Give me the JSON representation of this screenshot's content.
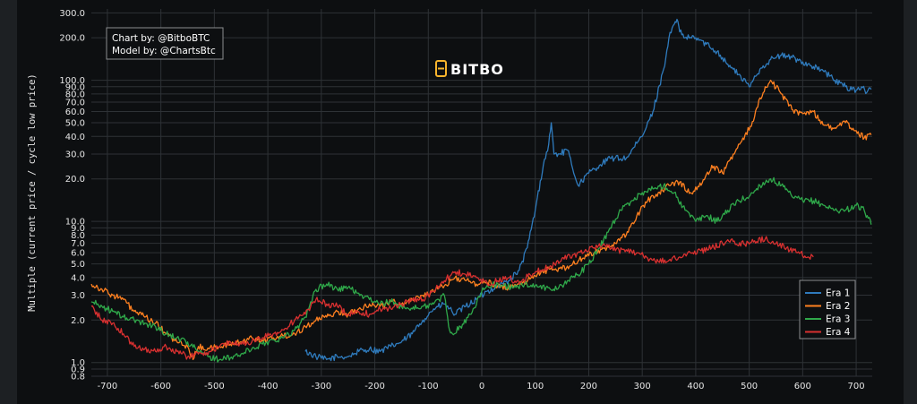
{
  "credits": {
    "line1": "Chart by: @BitboBTC",
    "line2": "Model by: @ChartsBtc"
  },
  "brand": {
    "name": "BITBO",
    "icon": "bitcoin-b-logo",
    "color": "#f7b42c"
  },
  "chart_data": {
    "type": "line",
    "title": "",
    "xlabel": "",
    "ylabel": "Multiple (current price / cycle low price)",
    "xlim": [
      -730,
      730
    ],
    "ylim": [
      0.8,
      320
    ],
    "yscale": "log",
    "grid": true,
    "legend_position": "bottom-right",
    "xticks": [
      -700,
      -600,
      -500,
      -400,
      -300,
      -200,
      -100,
      0,
      100,
      200,
      300,
      400,
      500,
      600,
      700
    ],
    "yticks": [
      0.8,
      0.9,
      1.0,
      2.0,
      3.0,
      4.0,
      5.0,
      6.0,
      7.0,
      8.0,
      9.0,
      10.0,
      20.0,
      30.0,
      40.0,
      50.0,
      60.0,
      70.0,
      80.0,
      90.0,
      100.0,
      200.0,
      300.0
    ],
    "ytick_labels": [
      "0.8",
      "0.9",
      "1.0",
      "2.0",
      "3.0",
      "4.0",
      "5.0",
      "6.0",
      "7.0",
      "8.0",
      "9.0",
      "10.0",
      "20.0",
      "30.0",
      "40.0",
      "50.0",
      "60.0",
      "70.0",
      "80.0",
      "90.0",
      "100.0",
      "200.0",
      "300.0"
    ],
    "series": [
      {
        "name": "Era 1",
        "color": "#2f7bbd",
        "x": [
          -330,
          -310,
          -290,
          -270,
          -250,
          -230,
          -210,
          -190,
          -170,
          -150,
          -130,
          -110,
          -90,
          -70,
          -50,
          -30,
          -10,
          10,
          30,
          50,
          70,
          85,
          100,
          115,
          125,
          130,
          135,
          145,
          160,
          180,
          200,
          220,
          240,
          270,
          300,
          320,
          340,
          350,
          360,
          365,
          370,
          380,
          400,
          420,
          440,
          460,
          480,
          500,
          520,
          540,
          560,
          580,
          600,
          620,
          640,
          660,
          680,
          700,
          710,
          720,
          728
        ],
        "values": [
          1.2,
          1.1,
          1.05,
          1.1,
          1.1,
          1.2,
          1.25,
          1.2,
          1.3,
          1.4,
          1.6,
          2.0,
          2.4,
          2.6,
          2.2,
          2.5,
          2.8,
          3.2,
          3.5,
          3.8,
          4.5,
          6.5,
          12,
          25,
          35,
          50,
          30,
          30,
          32,
          18,
          22,
          25,
          28,
          28,
          40,
          60,
          120,
          200,
          250,
          270,
          220,
          200,
          200,
          180,
          160,
          130,
          110,
          90,
          120,
          140,
          150,
          145,
          135,
          125,
          115,
          100,
          90,
          85,
          90,
          82,
          86
        ]
      },
      {
        "name": "Era 2",
        "color": "#ff8020",
        "x": [
          -730,
          -710,
          -690,
          -670,
          -650,
          -630,
          -610,
          -590,
          -570,
          -550,
          -540,
          -530,
          -510,
          -490,
          -470,
          -450,
          -430,
          -410,
          -390,
          -370,
          -350,
          -330,
          -310,
          -290,
          -270,
          -250,
          -230,
          -210,
          -190,
          -170,
          -150,
          -130,
          -110,
          -90,
          -70,
          -50,
          -30,
          -10,
          10,
          30,
          50,
          70,
          90,
          110,
          130,
          150,
          170,
          190,
          210,
          230,
          250,
          270,
          290,
          310,
          330,
          350,
          370,
          390,
          410,
          430,
          450,
          470,
          490,
          510,
          520,
          530,
          540,
          560,
          580,
          600,
          620,
          640,
          660,
          680,
          700,
          715,
          728
        ],
        "values": [
          3.6,
          3.3,
          3.0,
          2.8,
          2.3,
          2.1,
          1.9,
          1.6,
          1.4,
          1.3,
          1.05,
          1.3,
          1.25,
          1.3,
          1.35,
          1.4,
          1.5,
          1.45,
          1.5,
          1.55,
          1.6,
          1.8,
          2.0,
          2.1,
          2.3,
          2.2,
          2.4,
          2.6,
          2.5,
          2.7,
          2.6,
          2.8,
          3.0,
          3.2,
          3.5,
          4.0,
          3.8,
          3.6,
          3.7,
          3.5,
          3.4,
          3.6,
          3.9,
          4.3,
          4.7,
          4.6,
          5.0,
          5.5,
          6.0,
          6.5,
          7.0,
          8.0,
          11,
          14,
          16,
          18,
          19,
          16,
          18,
          25,
          22,
          30,
          38,
          55,
          75,
          90,
          100,
          80,
          62,
          58,
          60,
          48,
          46,
          50,
          44,
          39,
          41
        ]
      },
      {
        "name": "Era 3",
        "color": "#2fa84a",
        "x": [
          -730,
          -710,
          -690,
          -670,
          -650,
          -630,
          -610,
          -590,
          -570,
          -550,
          -530,
          -510,
          -490,
          -470,
          -450,
          -430,
          -410,
          -390,
          -370,
          -350,
          -330,
          -310,
          -290,
          -270,
          -250,
          -230,
          -210,
          -190,
          -170,
          -150,
          -130,
          -110,
          -90,
          -70,
          -62,
          -55,
          -40,
          -20,
          0,
          20,
          40,
          60,
          80,
          100,
          120,
          140,
          160,
          180,
          200,
          220,
          240,
          260,
          280,
          300,
          320,
          340,
          360,
          380,
          400,
          420,
          440,
          460,
          480,
          500,
          520,
          540,
          560,
          580,
          600,
          620,
          640,
          660,
          680,
          700,
          715,
          728
        ],
        "values": [
          2.7,
          2.5,
          2.3,
          2.1,
          2.0,
          1.9,
          1.8,
          1.6,
          1.5,
          1.4,
          1.2,
          1.1,
          1.05,
          1.08,
          1.15,
          1.25,
          1.35,
          1.45,
          1.5,
          1.7,
          2.1,
          3.3,
          3.6,
          3.3,
          3.4,
          3.1,
          2.8,
          2.6,
          2.7,
          2.5,
          2.4,
          2.5,
          2.6,
          3.0,
          1.8,
          1.6,
          1.8,
          2.2,
          3.2,
          3.6,
          3.5,
          3.4,
          3.6,
          3.5,
          3.4,
          3.3,
          3.8,
          4.2,
          5.0,
          6.5,
          9.0,
          12,
          14,
          16,
          17,
          18,
          16,
          12,
          10,
          11,
          10,
          12,
          14,
          15,
          18,
          20,
          18,
          15,
          14,
          14,
          13,
          12,
          12,
          13,
          12,
          9.5
        ]
      },
      {
        "name": "Era 4",
        "color": "#d83030",
        "x": [
          -730,
          -710,
          -690,
          -670,
          -650,
          -630,
          -610,
          -590,
          -570,
          -550,
          -530,
          -510,
          -490,
          -470,
          -450,
          -430,
          -410,
          -390,
          -370,
          -350,
          -330,
          -310,
          -290,
          -270,
          -250,
          -230,
          -210,
          -190,
          -170,
          -150,
          -130,
          -110,
          -90,
          -70,
          -50,
          -30,
          -10,
          10,
          30,
          50,
          70,
          90,
          110,
          130,
          150,
          170,
          190,
          210,
          230,
          250,
          270,
          290,
          310,
          330,
          350,
          370,
          390,
          410,
          430,
          450,
          470,
          490,
          510,
          530,
          550,
          570,
          590,
          610,
          620
        ],
        "values": [
          2.5,
          2.0,
          1.9,
          1.6,
          1.3,
          1.25,
          1.2,
          1.3,
          1.2,
          1.1,
          1.15,
          1.2,
          1.3,
          1.4,
          1.35,
          1.4,
          1.5,
          1.6,
          1.7,
          2.0,
          2.2,
          2.8,
          2.6,
          2.5,
          2.2,
          2.3,
          2.2,
          2.4,
          2.4,
          2.6,
          2.8,
          2.8,
          3.2,
          3.8,
          4.4,
          4.2,
          4.0,
          3.6,
          3.8,
          4.0,
          3.6,
          4.2,
          4.5,
          4.8,
          5.5,
          5.8,
          6.0,
          6.5,
          6.8,
          6.2,
          6.3,
          6.0,
          5.5,
          5.2,
          5.3,
          5.6,
          6.0,
          6.2,
          6.5,
          7.0,
          7.2,
          6.9,
          7.3,
          7.5,
          7.0,
          6.5,
          6.0,
          5.6,
          5.6
        ]
      }
    ]
  }
}
